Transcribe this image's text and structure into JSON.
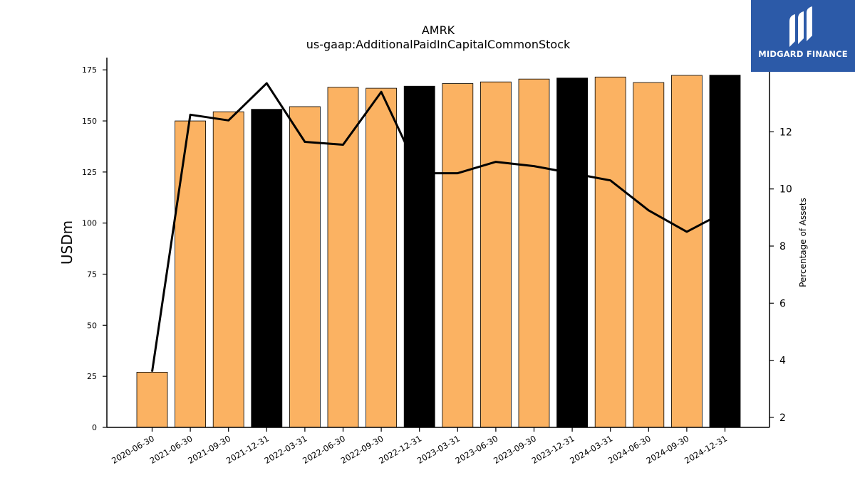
{
  "chart_data": {
    "type": "bar",
    "title": "AMRK",
    "subtitle": "us-gaap:AdditionalPaidInCapitalCommonStock",
    "ylabel": "USDm",
    "y2label": "Percentage of Assets",
    "ylim": [
      0,
      181
    ],
    "y2lim": [
      1.65,
      14.6
    ],
    "yticks": [
      0,
      25,
      50,
      75,
      100,
      125,
      150,
      175
    ],
    "y2ticks": [
      2,
      4,
      6,
      8,
      10,
      12
    ],
    "categories": [
      "2020-06-30",
      "2021-06-30",
      "2021-09-30",
      "2021-12-31",
      "2022-03-31",
      "2022-06-30",
      "2022-09-30",
      "2022-12-31",
      "2023-03-31",
      "2023-06-30",
      "2023-09-30",
      "2023-12-31",
      "2024-03-31",
      "2024-06-30",
      "2024-09-30",
      "2024-12-31"
    ],
    "values": [
      27,
      150,
      154.5,
      155.7,
      157,
      166.5,
      166,
      167,
      168.3,
      169.1,
      170.5,
      171,
      171.5,
      168.8,
      172.3,
      172.4
    ],
    "bar_colors": [
      "#fbb262",
      "#fbb262",
      "#fbb262",
      "#000000",
      "#fbb262",
      "#fbb262",
      "#fbb262",
      "#000000",
      "#fbb262",
      "#fbb262",
      "#fbb262",
      "#000000",
      "#fbb262",
      "#fbb262",
      "#fbb262",
      "#000000"
    ],
    "line_values": [
      3.6,
      12.6,
      12.4,
      13.7,
      11.65,
      11.55,
      13.4,
      10.55,
      10.55,
      10.95,
      10.8,
      10.55,
      10.3,
      9.25,
      8.5,
      9.2
    ],
    "line_color": "#000000",
    "grid": false
  },
  "logo": {
    "text": "MIDGARD FINANCE",
    "background": "#2c5aa8"
  }
}
